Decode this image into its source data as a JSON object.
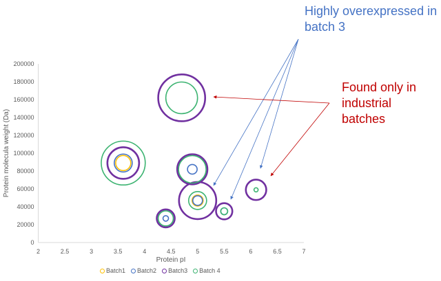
{
  "chart_data": {
    "type": "bubble",
    "title": "",
    "xlabel": "Protein pI",
    "ylabel": "Protein molecula weight (Da)",
    "xlim": [
      2,
      7
    ],
    "ylim": [
      0,
      200000
    ],
    "xticks": [
      "2",
      "2.5",
      "3",
      "3.5",
      "4",
      "4.5",
      "5",
      "5.5",
      "6",
      "6.5",
      "7"
    ],
    "yticks": [
      "0",
      "20000",
      "40000",
      "60000",
      "80000",
      "100000",
      "120000",
      "140000",
      "160000",
      "180000",
      "200000"
    ],
    "grid": false,
    "legend_position": "bottom",
    "bubble_style": "hollow rings",
    "series": [
      {
        "name": "Batch1",
        "color": "#FFC000",
        "points": [
          {
            "x": 3.6,
            "y": 89000,
            "size": 12
          },
          {
            "x": 5.0,
            "y": 47000,
            "size": 6.4
          }
        ]
      },
      {
        "name": "Batch2",
        "color": "#4472C4",
        "points": [
          {
            "x": 3.6,
            "y": 89000,
            "size": 17
          },
          {
            "x": 4.9,
            "y": 82000,
            "size": 4.9
          },
          {
            "x": 5.0,
            "y": 47000,
            "size": 4.9
          },
          {
            "x": 4.4,
            "y": 27000,
            "size": 1.6
          },
          {
            "x": 5.5,
            "y": 35000,
            "size": 2.5
          }
        ]
      },
      {
        "name": "Batch3",
        "color": "#7030A0",
        "points": [
          {
            "x": 4.7,
            "y": 162000,
            "size": 116
          },
          {
            "x": 3.6,
            "y": 89000,
            "size": 53
          },
          {
            "x": 4.9,
            "y": 82000,
            "size": 48
          },
          {
            "x": 5.0,
            "y": 47000,
            "size": 73
          },
          {
            "x": 4.4,
            "y": 27000,
            "size": 17
          },
          {
            "x": 5.5,
            "y": 35000,
            "size": 14
          },
          {
            "x": 6.1,
            "y": 59000,
            "size": 22
          }
        ]
      },
      {
        "name": "Batch 4",
        "color": "#3CB371",
        "points": [
          {
            "x": 4.7,
            "y": 162000,
            "size": 53
          },
          {
            "x": 3.6,
            "y": 89000,
            "size": 102
          },
          {
            "x": 4.9,
            "y": 82000,
            "size": 40
          },
          {
            "x": 5.0,
            "y": 47000,
            "size": 17
          },
          {
            "x": 4.4,
            "y": 27000,
            "size": 12
          },
          {
            "x": 5.5,
            "y": 35000,
            "size": 2.5
          },
          {
            "x": 6.1,
            "y": 59000,
            "size": 0.9
          }
        ]
      }
    ],
    "annotations": [
      {
        "text": "Highly overexpressed in batch 3",
        "color": "#4472C4"
      },
      {
        "text": "Found only in industrial batches",
        "color": "#C00000"
      }
    ]
  }
}
